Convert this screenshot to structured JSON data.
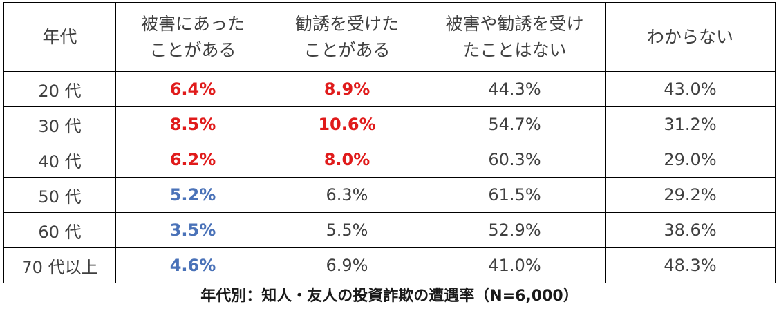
{
  "table": {
    "headers": [
      {
        "lines": [
          "年代"
        ]
      },
      {
        "lines": [
          "被害にあった",
          "ことがある"
        ]
      },
      {
        "lines": [
          "勧誘を受けた",
          "ことがある"
        ]
      },
      {
        "lines": [
          "被害や勧誘を受け",
          "たことはない"
        ]
      },
      {
        "lines": [
          "わからない"
        ]
      }
    ],
    "rows": [
      {
        "age": "20 代",
        "damaged": "6.4%",
        "solicited": "8.9%",
        "neither": "44.3%",
        "unknown": "43.0%"
      },
      {
        "age": "30 代",
        "damaged": "8.5%",
        "solicited": "10.6%",
        "neither": "54.7%",
        "unknown": "31.2%"
      },
      {
        "age": "40 代",
        "damaged": "6.2%",
        "solicited": "8.0%",
        "neither": "60.3%",
        "unknown": "29.0%"
      },
      {
        "age": "50 代",
        "damaged": "5.2%",
        "solicited": "6.3%",
        "neither": "61.5%",
        "unknown": "29.2%"
      },
      {
        "age": "60 代",
        "damaged": "3.5%",
        "solicited": "5.5%",
        "neither": "52.9%",
        "unknown": "38.6%"
      },
      {
        "age": "70 代以上",
        "damaged": "4.6%",
        "solicited": "6.9%",
        "neither": "41.0%",
        "unknown": "48.3%"
      }
    ]
  },
  "caption": "年代別：知人・友人の投資詐欺の遭遇率（N=6,000）",
  "colors": {
    "highlight_red": "#e01b1b",
    "highlight_blue": "#4a72b8",
    "text": "#404040",
    "border": "#000000"
  }
}
